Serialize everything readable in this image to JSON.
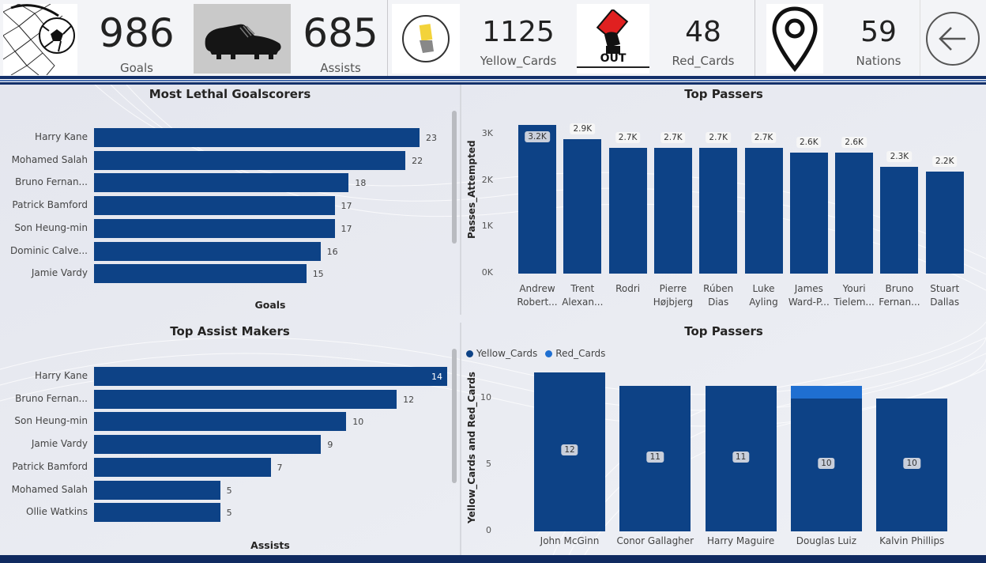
{
  "kpis": [
    {
      "value": "986",
      "label": "Goals",
      "icon": "soccer-ball-net-icon"
    },
    {
      "value": "685",
      "label": "Assists",
      "icon": "football-boot-icon"
    },
    {
      "value": "1125",
      "label": "Yellow_Cards",
      "icon": "yellow-card-icon"
    },
    {
      "value": "48",
      "label": "Red_Cards",
      "icon": "red-card-out-icon",
      "icon_text": "OUT"
    },
    {
      "value": "59",
      "label": "Nations",
      "icon": "location-pin-icon"
    }
  ],
  "back_button": {
    "icon": "back-arrow-icon"
  },
  "colors": {
    "bar": "#0d4286",
    "red_cards": "#1f6fd1",
    "stripe": "#13306a"
  },
  "chart_data": [
    {
      "type": "bar",
      "orientation": "horizontal",
      "title": "Most Lethal Goalscorers",
      "xlabel": "Goals",
      "categories": [
        "Harry Kane",
        "Mohamed Salah",
        "Bruno Fernan...",
        "Patrick Bamford",
        "Son Heung-min",
        "Dominic Calve...",
        "Jamie Vardy"
      ],
      "values": [
        23,
        22,
        18,
        17,
        17,
        16,
        15
      ]
    },
    {
      "type": "bar",
      "title": "Top Passers",
      "ylabel": "Passes_Attempted",
      "yticks": [
        "3K",
        "2K",
        "1K",
        "0K"
      ],
      "categories": [
        [
          "Andrew",
          "Robert..."
        ],
        [
          "Trent",
          "Alexan..."
        ],
        [
          "Rodri",
          ""
        ],
        [
          "Pierre",
          "Højbjerg"
        ],
        [
          "Rúben",
          "Dias"
        ],
        [
          "Luke",
          "Ayling"
        ],
        [
          "James",
          "Ward-P..."
        ],
        [
          "Youri",
          "Tielem..."
        ],
        [
          "Bruno",
          "Fernan..."
        ],
        [
          "Stuart",
          "Dallas"
        ]
      ],
      "values": [
        3200,
        2900,
        2700,
        2700,
        2700,
        2700,
        2600,
        2600,
        2300,
        2200
      ],
      "labels": [
        "3.2K",
        "2.9K",
        "2.7K",
        "2.7K",
        "2.7K",
        "2.7K",
        "2.6K",
        "2.6K",
        "2.3K",
        "2.2K"
      ],
      "ylim": [
        0,
        3200
      ]
    },
    {
      "type": "bar",
      "orientation": "horizontal",
      "title": "Top Assist Makers",
      "xlabel": "Assists",
      "categories": [
        "Harry Kane",
        "Bruno Fernan...",
        "Son Heung-min",
        "Jamie Vardy",
        "Patrick Bamford",
        "Mohamed Salah",
        "Ollie Watkins"
      ],
      "values": [
        14,
        12,
        10,
        9,
        7,
        5,
        5
      ]
    },
    {
      "type": "bar",
      "stacked": true,
      "title": "Top Passers",
      "ylabel": "Yellow_Cards and Red_Cards",
      "yticks": [
        "10",
        "5",
        "0"
      ],
      "categories": [
        "John McGinn",
        "Conor Gallagher",
        "Harry Maguire",
        "Douglas Luiz",
        "Kalvin Phillips"
      ],
      "series": [
        {
          "name": "Yellow_Cards",
          "values": [
            12,
            11,
            11,
            10,
            10
          ]
        },
        {
          "name": "Red_Cards",
          "values": [
            0,
            0,
            0,
            1,
            0
          ]
        }
      ],
      "ylim": [
        0,
        13
      ]
    }
  ]
}
